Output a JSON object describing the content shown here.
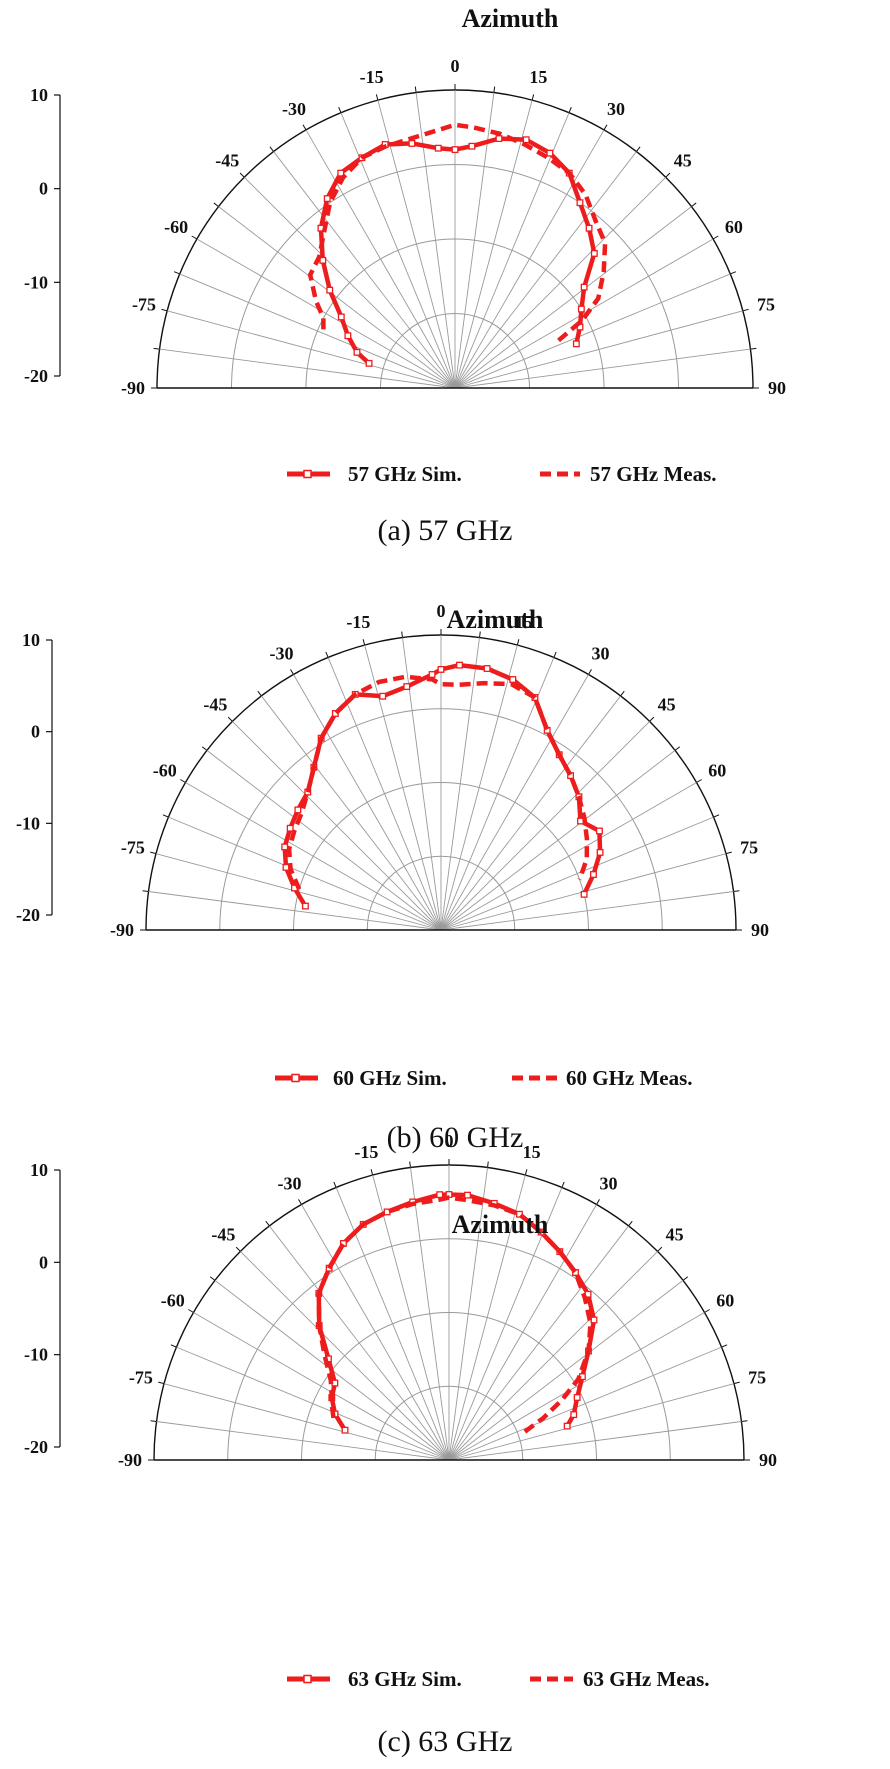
{
  "chart_data": [
    {
      "type": "polar-half",
      "title": "Azimuth",
      "caption": "(a)  57  GHz",
      "theta_ticks": [
        -90,
        -75,
        -60,
        -45,
        -30,
        -15,
        0,
        15,
        30,
        45,
        60,
        75,
        90
      ],
      "r_ticks": [
        10,
        0,
        -10,
        -20
      ],
      "rlim": [
        -20,
        10
      ],
      "series": [
        {
          "name": "57 GHz Sim.",
          "style": "solid-markers",
          "theta": [
            -74,
            -70,
            -64,
            -58,
            -52,
            -46,
            -40,
            -34,
            -28,
            -22,
            -16,
            -10,
            -4,
            0,
            4,
            10,
            16,
            22,
            28,
            34,
            40,
            46,
            52,
            58,
            64,
            70
          ],
          "r": [
            -11.0,
            -9.5,
            -8.0,
            -6.5,
            -4.0,
            -1.5,
            1.0,
            3.0,
            4.5,
            5.0,
            5.5,
            5.0,
            4.2,
            4.0,
            4.4,
            5.5,
            6.0,
            5.5,
            4.5,
            2.5,
            1.0,
            -0.5,
            -3.5,
            -5.0,
            -6.0,
            -7.0
          ]
        },
        {
          "name": "57 GHz Meas.",
          "style": "dashed",
          "theta": [
            -66,
            -62,
            -58,
            -52,
            -46,
            -40,
            -34,
            -28,
            -22,
            -16,
            -10,
            -4,
            0,
            4,
            10,
            16,
            22,
            28,
            34,
            40,
            46,
            52,
            58,
            62,
            66
          ],
          "r": [
            -5.5,
            -5.0,
            -3.5,
            -1.5,
            -1.0,
            0.5,
            2.5,
            4.0,
            5.0,
            5.3,
            5.5,
            6.0,
            6.5,
            6.3,
            6.0,
            5.5,
            5.0,
            4.5,
            3.5,
            2.0,
            1.0,
            -1.0,
            -3.0,
            -5.5,
            -9.0
          ]
        }
      ]
    },
    {
      "type": "polar-half",
      "title": "Azimuth",
      "caption": "(b)  60  GHz",
      "theta_ticks": [
        -90,
        -75,
        -60,
        -45,
        -30,
        -15,
        0,
        15,
        30,
        45,
        60,
        75,
        90
      ],
      "r_ticks": [
        10,
        0,
        -10,
        -20
      ],
      "rlim": [
        -20,
        10
      ],
      "series": [
        {
          "name": "60 GHz Sim.",
          "style": "solid-markers",
          "theta": [
            -80,
            -74,
            -68,
            -62,
            -56,
            -50,
            -44,
            -38,
            -32,
            -26,
            -20,
            -14,
            -8,
            -2,
            0,
            4,
            10,
            16,
            22,
            28,
            34,
            40,
            46,
            52,
            58,
            64,
            70,
            76
          ],
          "r": [
            -6.0,
            -4.5,
            -3.0,
            -2.0,
            -1.5,
            -1.0,
            -0.5,
            1.0,
            3.0,
            4.5,
            5.5,
            4.5,
            5.0,
            6.0,
            6.5,
            7.0,
            7.0,
            6.5,
            5.5,
            3.0,
            1.5,
            0.5,
            -0.5,
            -2.0,
            -1.0,
            -2.0,
            -3.5,
            -5.0
          ]
        },
        {
          "name": "60 GHz Meas.",
          "style": "dashed",
          "theta": [
            -74,
            -68,
            -62,
            -56,
            -50,
            -44,
            -38,
            -32,
            -26,
            -20,
            -14,
            -8,
            -2,
            0,
            4,
            10,
            16,
            22,
            28,
            34,
            40,
            46,
            52,
            58,
            64,
            70
          ],
          "r": [
            -5.0,
            -3.5,
            -2.5,
            -2.0,
            -1.5,
            -0.5,
            1.0,
            3.0,
            4.5,
            5.5,
            6.0,
            6.0,
            5.5,
            5.0,
            5.0,
            5.5,
            6.0,
            5.5,
            3.0,
            1.5,
            0.5,
            -0.5,
            -1.5,
            -2.5,
            -3.5,
            -5.0
          ]
        }
      ]
    },
    {
      "type": "polar-half",
      "title": "Azimuth",
      "caption": "(c)  63  GHz",
      "theta_ticks": [
        -90,
        -75,
        -60,
        -45,
        -30,
        -15,
        0,
        15,
        30,
        45,
        60,
        75,
        90
      ],
      "r_ticks": [
        10,
        0,
        -10,
        -20
      ],
      "rlim": [
        -20,
        10
      ],
      "series": [
        {
          "name": "63 GHz Sim.",
          "style": "solid-markers",
          "theta": [
            -74,
            -68,
            -62,
            -56,
            -50,
            -44,
            -38,
            -32,
            -26,
            -20,
            -14,
            -8,
            -2,
            0,
            4,
            10,
            16,
            22,
            28,
            34,
            40,
            46,
            52,
            58,
            64,
            70,
            74
          ],
          "r": [
            -9.0,
            -7.5,
            -6.5,
            -6.0,
            -4.0,
            -1.0,
            1.5,
            3.0,
            4.5,
            5.5,
            6.0,
            6.5,
            7.0,
            7.0,
            7.0,
            6.5,
            6.0,
            5.0,
            4.0,
            3.0,
            2.0,
            0.5,
            -2.0,
            -4.0,
            -5.5,
            -6.5,
            -7.5
          ]
        },
        {
          "name": "63 GHz Meas.",
          "style": "dashed",
          "theta": [
            -70,
            -66,
            -62,
            -56,
            -50,
            -44,
            -38,
            -32,
            -26,
            -20,
            -14,
            -8,
            -2,
            0,
            4,
            10,
            16,
            22,
            28,
            34,
            40,
            46,
            52,
            58,
            62,
            66,
            70
          ],
          "r": [
            -7.5,
            -7.0,
            -6.5,
            -5.5,
            -3.5,
            -1.0,
            1.5,
            3.0,
            4.5,
            5.5,
            6.0,
            6.3,
            6.5,
            6.7,
            6.5,
            6.3,
            6.0,
            5.0,
            4.0,
            3.0,
            1.5,
            0.0,
            -2.0,
            -4.5,
            -7.0,
            -9.5,
            -12.0
          ]
        }
      ]
    }
  ]
}
